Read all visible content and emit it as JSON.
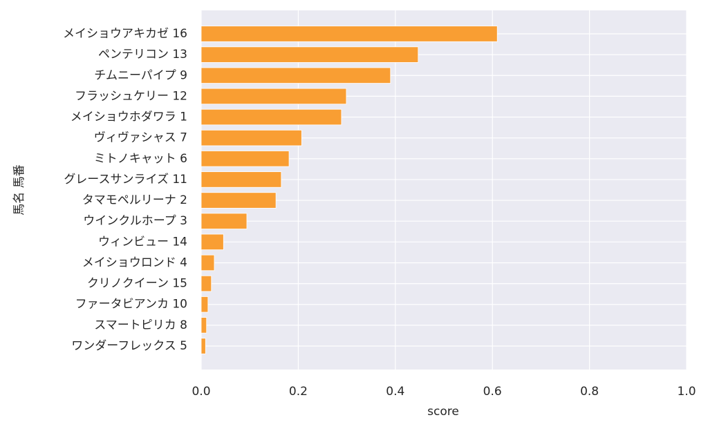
{
  "chart_data": {
    "type": "bar",
    "orientation": "horizontal",
    "xlabel": "score",
    "ylabel": "馬名 馬番",
    "categories": [
      "メイショウアキカゼ 16",
      "ペンテリコン 13",
      "チムニーパイプ 9",
      "フラッシュケリー 12",
      "メイショウホダワラ 1",
      "ヴィヴァシャス 7",
      "ミトノキャット 6",
      "グレースサンライズ 11",
      "タマモペルリーナ 2",
      "ウインクルホープ 3",
      "ウィンビュー 14",
      "メイショウロンド 4",
      "クリノクイーン 15",
      "ファータビアンカ 10",
      "スマートピリカ 8",
      "ワンダーフレックス 5"
    ],
    "values": [
      0.61,
      0.447,
      0.39,
      0.299,
      0.289,
      0.207,
      0.181,
      0.165,
      0.154,
      0.094,
      0.046,
      0.027,
      0.021,
      0.014,
      0.011,
      0.009
    ],
    "color": "#f99e33",
    "xlim": [
      0,
      1
    ],
    "xticks": [
      {
        "value": 0,
        "label": "0.0"
      },
      0.2,
      0.4,
      0.6,
      0.8,
      {
        "value": 1,
        "label": "1.0"
      }
    ],
    "grid": true
  }
}
